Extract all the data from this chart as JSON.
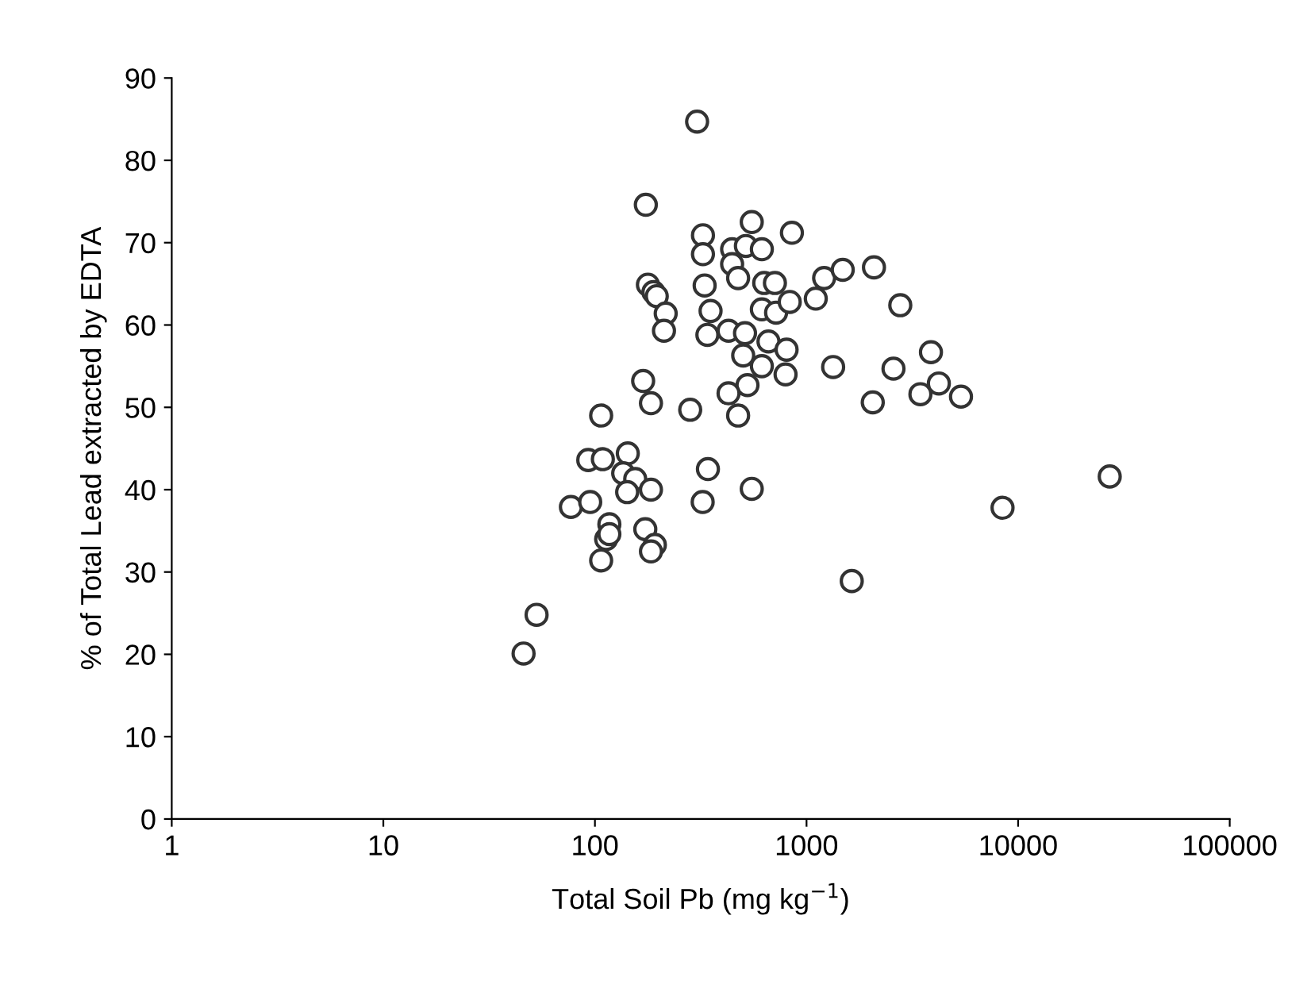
{
  "chart_data": {
    "type": "scatter",
    "xlabel": "Total Soil Pb (mg kg$^{−1}$)",
    "ylabel": "% of Total Lead extracted by EDTA",
    "log": "x",
    "marker": "circle",
    "grid": false,
    "legend": false,
    "xlim": [
      1,
      100000
    ],
    "xticks": [
      1,
      10,
      100,
      1000,
      10000,
      100000
    ],
    "ylim": [
      0,
      90
    ],
    "yticks": [
      0,
      10,
      20,
      30,
      40,
      50,
      60,
      70,
      80,
      90
    ],
    "series": [
      {
        "color": "#333333",
        "x": [
          304,
          174,
          324,
          324,
          551,
          853,
          445,
          517,
          615,
          445,
          475,
          330,
          178,
          189,
          196,
          216,
          212,
          352,
          340,
          428,
          512,
          631,
          709,
          615,
          718,
          833,
          661,
          805,
          502,
          615,
          796,
          526,
          428,
          475,
          1211,
          1483,
          1106,
          2083,
          1336,
          2056,
          169,
          184,
          282,
          107,
          93,
          109,
          143,
          136,
          155,
          142,
          184,
          342,
          323,
          551,
          77,
          95,
          117,
          113,
          117,
          173,
          192,
          184,
          107,
          46,
          53,
          1636,
          2774,
          3873,
          2576,
          3453,
          4220,
          5370,
          8440,
          27100
        ],
        "values": [
          84.7,
          74.6,
          70.9,
          68.6,
          72.5,
          71.2,
          69.2,
          69.6,
          69.2,
          67.4,
          65.7,
          64.8,
          64.9,
          64.0,
          63.5,
          61.4,
          59.3,
          61.7,
          58.8,
          59.3,
          59.0,
          65.1,
          65.1,
          61.9,
          61.5,
          62.8,
          58.0,
          57.0,
          56.3,
          55.0,
          54.0,
          52.7,
          51.7,
          49.0,
          65.7,
          66.7,
          63.2,
          67.0,
          54.9,
          50.6,
          53.2,
          50.5,
          49.7,
          49.0,
          43.6,
          43.7,
          44.4,
          42.0,
          41.3,
          39.7,
          40.0,
          42.5,
          38.5,
          40.1,
          37.9,
          38.5,
          35.8,
          34.0,
          34.6,
          35.2,
          33.3,
          32.5,
          31.4,
          20.1,
          24.8,
          28.9,
          62.4,
          56.7,
          54.7,
          51.6,
          52.9,
          51.3,
          37.8,
          41.6
        ]
      }
    ]
  }
}
